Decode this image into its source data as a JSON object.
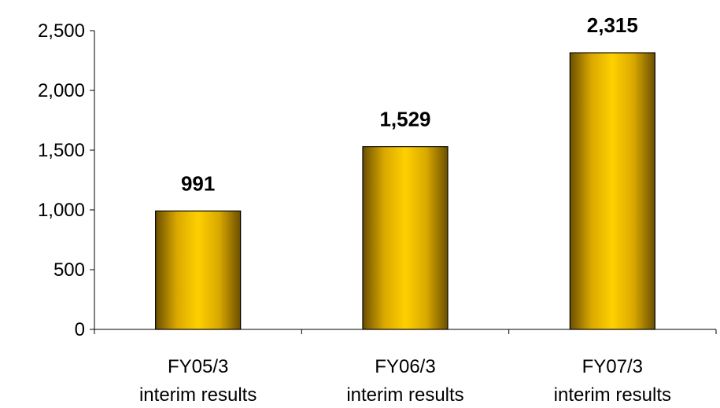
{
  "chart_data": {
    "type": "bar",
    "categories": [
      [
        "FY05/3",
        "interim results"
      ],
      [
        "FY06/3",
        "interim results"
      ],
      [
        "FY07/3",
        "interim results"
      ]
    ],
    "values": [
      991,
      1529,
      2315
    ],
    "value_labels": [
      "991",
      "1,529",
      "2,315"
    ],
    "yticks": [
      {
        "value": 0,
        "label": "0"
      },
      {
        "value": 500,
        "label": "500"
      },
      {
        "value": 1000,
        "label": "1,000"
      },
      {
        "value": 1500,
        "label": "1,500"
      },
      {
        "value": 2000,
        "label": "2,000"
      },
      {
        "value": 2500,
        "label": "2,500"
      }
    ],
    "ylim": [
      0,
      2500
    ],
    "grid": false,
    "legend": "none",
    "colors": {
      "bar_dark": "#7a5a00",
      "bar_mid": "#e0b000",
      "bar_light": "#ffd400"
    }
  }
}
